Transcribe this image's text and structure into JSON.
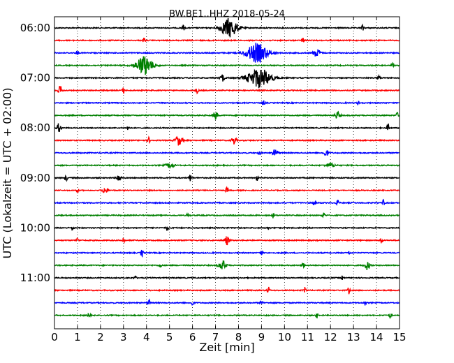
{
  "chart_data": {
    "type": "line",
    "title": "BW.BE1..HHZ 2018-05-24",
    "xlabel": "Zeit  [min]",
    "ylabel": "UTC (Lokalzeit = UTC + 02:00)",
    "xlim": [
      0,
      15
    ],
    "x_ticks": [
      "0",
      "1",
      "2",
      "3",
      "4",
      "5",
      "6",
      "7",
      "8",
      "9",
      "10",
      "11",
      "12",
      "13",
      "14",
      "15"
    ],
    "y_tick_labels": [
      "06:00",
      "07:00",
      "08:00",
      "09:00",
      "10:00",
      "11:00"
    ],
    "grid": "vertical dotted at each minute",
    "trace_interval_minutes": 15,
    "colors": [
      "#000000",
      "#ff0000",
      "#0000ff",
      "#008000"
    ],
    "traces": [
      {
        "start": "06:00",
        "events": [
          [
            7.6,
            1.0,
            0.35
          ],
          [
            5.6,
            0.3,
            0.05
          ],
          [
            13.4,
            0.3,
            0.05
          ]
        ]
      },
      {
        "start": "06:15",
        "events": [
          [
            3.9,
            0.3,
            0.05
          ],
          [
            10.8,
            0.3,
            0.05
          ]
        ]
      },
      {
        "start": "06:30",
        "events": [
          [
            8.8,
            1.0,
            0.45
          ],
          [
            11.4,
            0.4,
            0.15
          ],
          [
            1.0,
            0.25,
            0.05
          ]
        ]
      },
      {
        "start": "06:45",
        "events": [
          [
            3.9,
            1.0,
            0.35
          ],
          [
            14.7,
            0.25,
            0.05
          ]
        ]
      },
      {
        "start": "07:00",
        "events": [
          [
            8.9,
            1.0,
            0.5
          ],
          [
            7.3,
            0.35,
            0.1
          ],
          [
            14.1,
            0.3,
            0.05
          ]
        ]
      },
      {
        "start": "07:15",
        "events": [
          [
            0.25,
            0.45,
            0.08
          ],
          [
            3.0,
            0.3,
            0.05
          ],
          [
            6.2,
            0.3,
            0.05
          ]
        ]
      },
      {
        "start": "07:30",
        "events": [
          [
            9.1,
            0.25,
            0.05
          ],
          [
            13.2,
            0.2,
            0.05
          ]
        ]
      },
      {
        "start": "07:45",
        "events": [
          [
            7.0,
            0.4,
            0.1
          ],
          [
            12.3,
            0.4,
            0.1
          ],
          [
            14.9,
            0.3,
            0.05
          ]
        ]
      },
      {
        "start": "08:00",
        "events": [
          [
            0.2,
            0.5,
            0.08
          ],
          [
            3.2,
            0.3,
            0.05
          ],
          [
            14.5,
            0.45,
            0.05
          ]
        ]
      },
      {
        "start": "08:15",
        "events": [
          [
            5.4,
            0.5,
            0.15
          ],
          [
            7.8,
            0.4,
            0.1
          ],
          [
            4.1,
            0.3,
            0.05
          ]
        ]
      },
      {
        "start": "08:30",
        "events": [
          [
            9.6,
            0.4,
            0.1
          ],
          [
            11.8,
            0.35,
            0.1
          ],
          [
            8.9,
            0.25,
            0.05
          ]
        ]
      },
      {
        "start": "08:45",
        "events": [
          [
            5.0,
            0.2,
            0.2
          ],
          [
            12.0,
            0.2,
            0.2
          ]
        ]
      },
      {
        "start": "09:00",
        "events": [
          [
            2.8,
            0.45,
            0.08
          ],
          [
            5.9,
            0.4,
            0.05
          ],
          [
            0.5,
            0.35,
            0.05
          ],
          [
            8.8,
            0.3,
            0.05
          ]
        ]
      },
      {
        "start": "09:15",
        "events": [
          [
            2.2,
            0.4,
            0.1
          ],
          [
            7.5,
            0.35,
            0.05
          ],
          [
            1.0,
            0.25,
            0.05
          ]
        ]
      },
      {
        "start": "09:30",
        "events": [
          [
            11.3,
            0.3,
            0.05
          ],
          [
            12.3,
            0.3,
            0.05
          ],
          [
            14.3,
            0.3,
            0.05
          ]
        ]
      },
      {
        "start": "09:45",
        "events": [
          [
            9.5,
            0.25,
            0.05
          ],
          [
            11.7,
            0.35,
            0.05
          ],
          [
            5.8,
            0.2,
            0.05
          ]
        ]
      },
      {
        "start": "10:00",
        "events": [
          [
            0.8,
            0.3,
            0.05
          ],
          [
            4.9,
            0.3,
            0.05
          ],
          [
            9.3,
            0.25,
            0.05
          ]
        ]
      },
      {
        "start": "10:15",
        "events": [
          [
            7.5,
            0.45,
            0.1
          ],
          [
            3.0,
            0.35,
            0.05
          ],
          [
            14.2,
            0.35,
            0.05
          ],
          [
            1.0,
            0.25,
            0.05
          ]
        ]
      },
      {
        "start": "10:30",
        "events": [
          [
            3.8,
            0.4,
            0.05
          ],
          [
            9.0,
            0.25,
            0.05
          ],
          [
            12.8,
            0.2,
            0.05
          ]
        ]
      },
      {
        "start": "10:45",
        "events": [
          [
            7.3,
            0.5,
            0.15
          ],
          [
            13.6,
            0.45,
            0.12
          ],
          [
            10.8,
            0.3,
            0.05
          ],
          [
            4.6,
            0.25,
            0.05
          ]
        ]
      },
      {
        "start": "11:00",
        "events": [
          [
            3.5,
            0.25,
            0.05
          ],
          [
            12.5,
            0.2,
            0.05
          ]
        ]
      },
      {
        "start": "11:15",
        "events": [
          [
            9.3,
            0.35,
            0.05
          ],
          [
            10.9,
            0.35,
            0.05
          ],
          [
            12.8,
            0.35,
            0.05
          ]
        ]
      },
      {
        "start": "11:30",
        "events": [
          [
            4.1,
            0.4,
            0.05
          ],
          [
            6.0,
            0.3,
            0.05
          ],
          [
            9.0,
            0.3,
            0.05
          ],
          [
            13.5,
            0.25,
            0.05
          ]
        ]
      },
      {
        "start": "11:45",
        "events": [
          [
            1.5,
            0.3,
            0.05
          ],
          [
            11.4,
            0.25,
            0.05
          ],
          [
            14.6,
            0.25,
            0.05
          ]
        ]
      }
    ]
  }
}
